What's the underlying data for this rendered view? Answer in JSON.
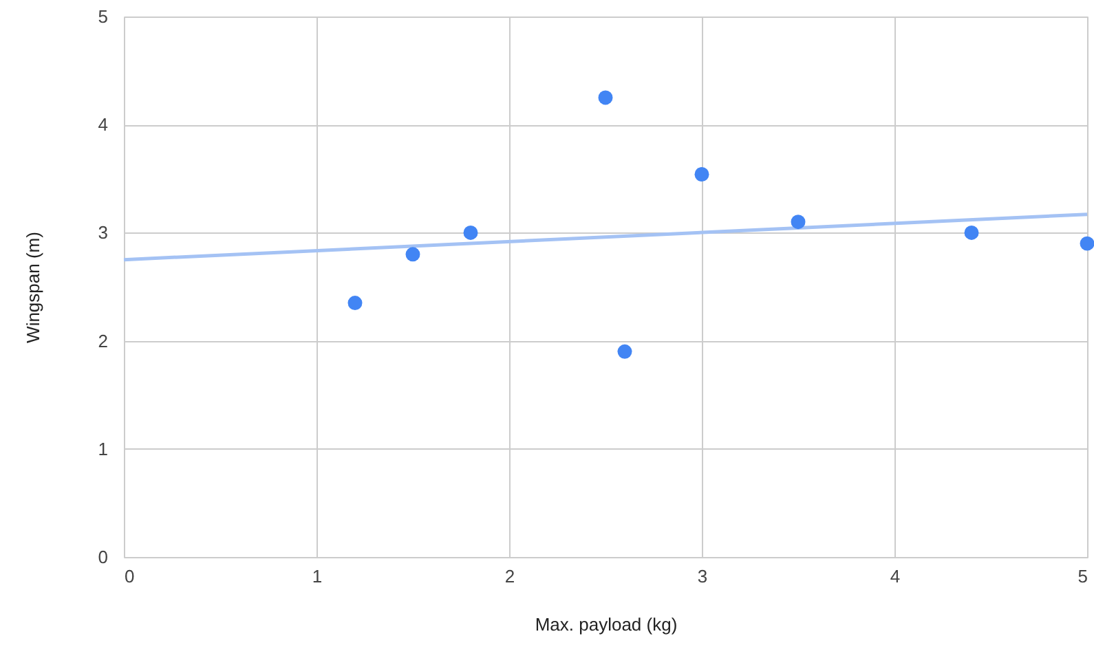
{
  "chart_data": {
    "type": "scatter",
    "xlabel": "Max. payload (kg)",
    "ylabel": "Wingspan (m)",
    "series": [
      {
        "color": "#4285f4",
        "marker": "circle",
        "x": [
          1.2,
          1.5,
          1.8,
          2.5,
          2.6,
          3.0,
          3.5,
          4.4,
          5.0
        ],
        "values": [
          2.35,
          2.8,
          3.0,
          4.25,
          1.9,
          3.54,
          3.1,
          3.0,
          2.9
        ]
      },
      {
        "type": "line",
        "color": "#a4c2f4",
        "x": [
          0,
          5
        ],
        "values": [
          2.75,
          3.17
        ]
      }
    ],
    "xlim": [
      0,
      5
    ],
    "xticks": [
      0,
      1,
      2,
      3,
      4,
      5
    ],
    "ylim": [
      0,
      5
    ],
    "yticks": [
      0,
      1,
      2,
      3,
      4,
      5
    ],
    "grid": true
  }
}
